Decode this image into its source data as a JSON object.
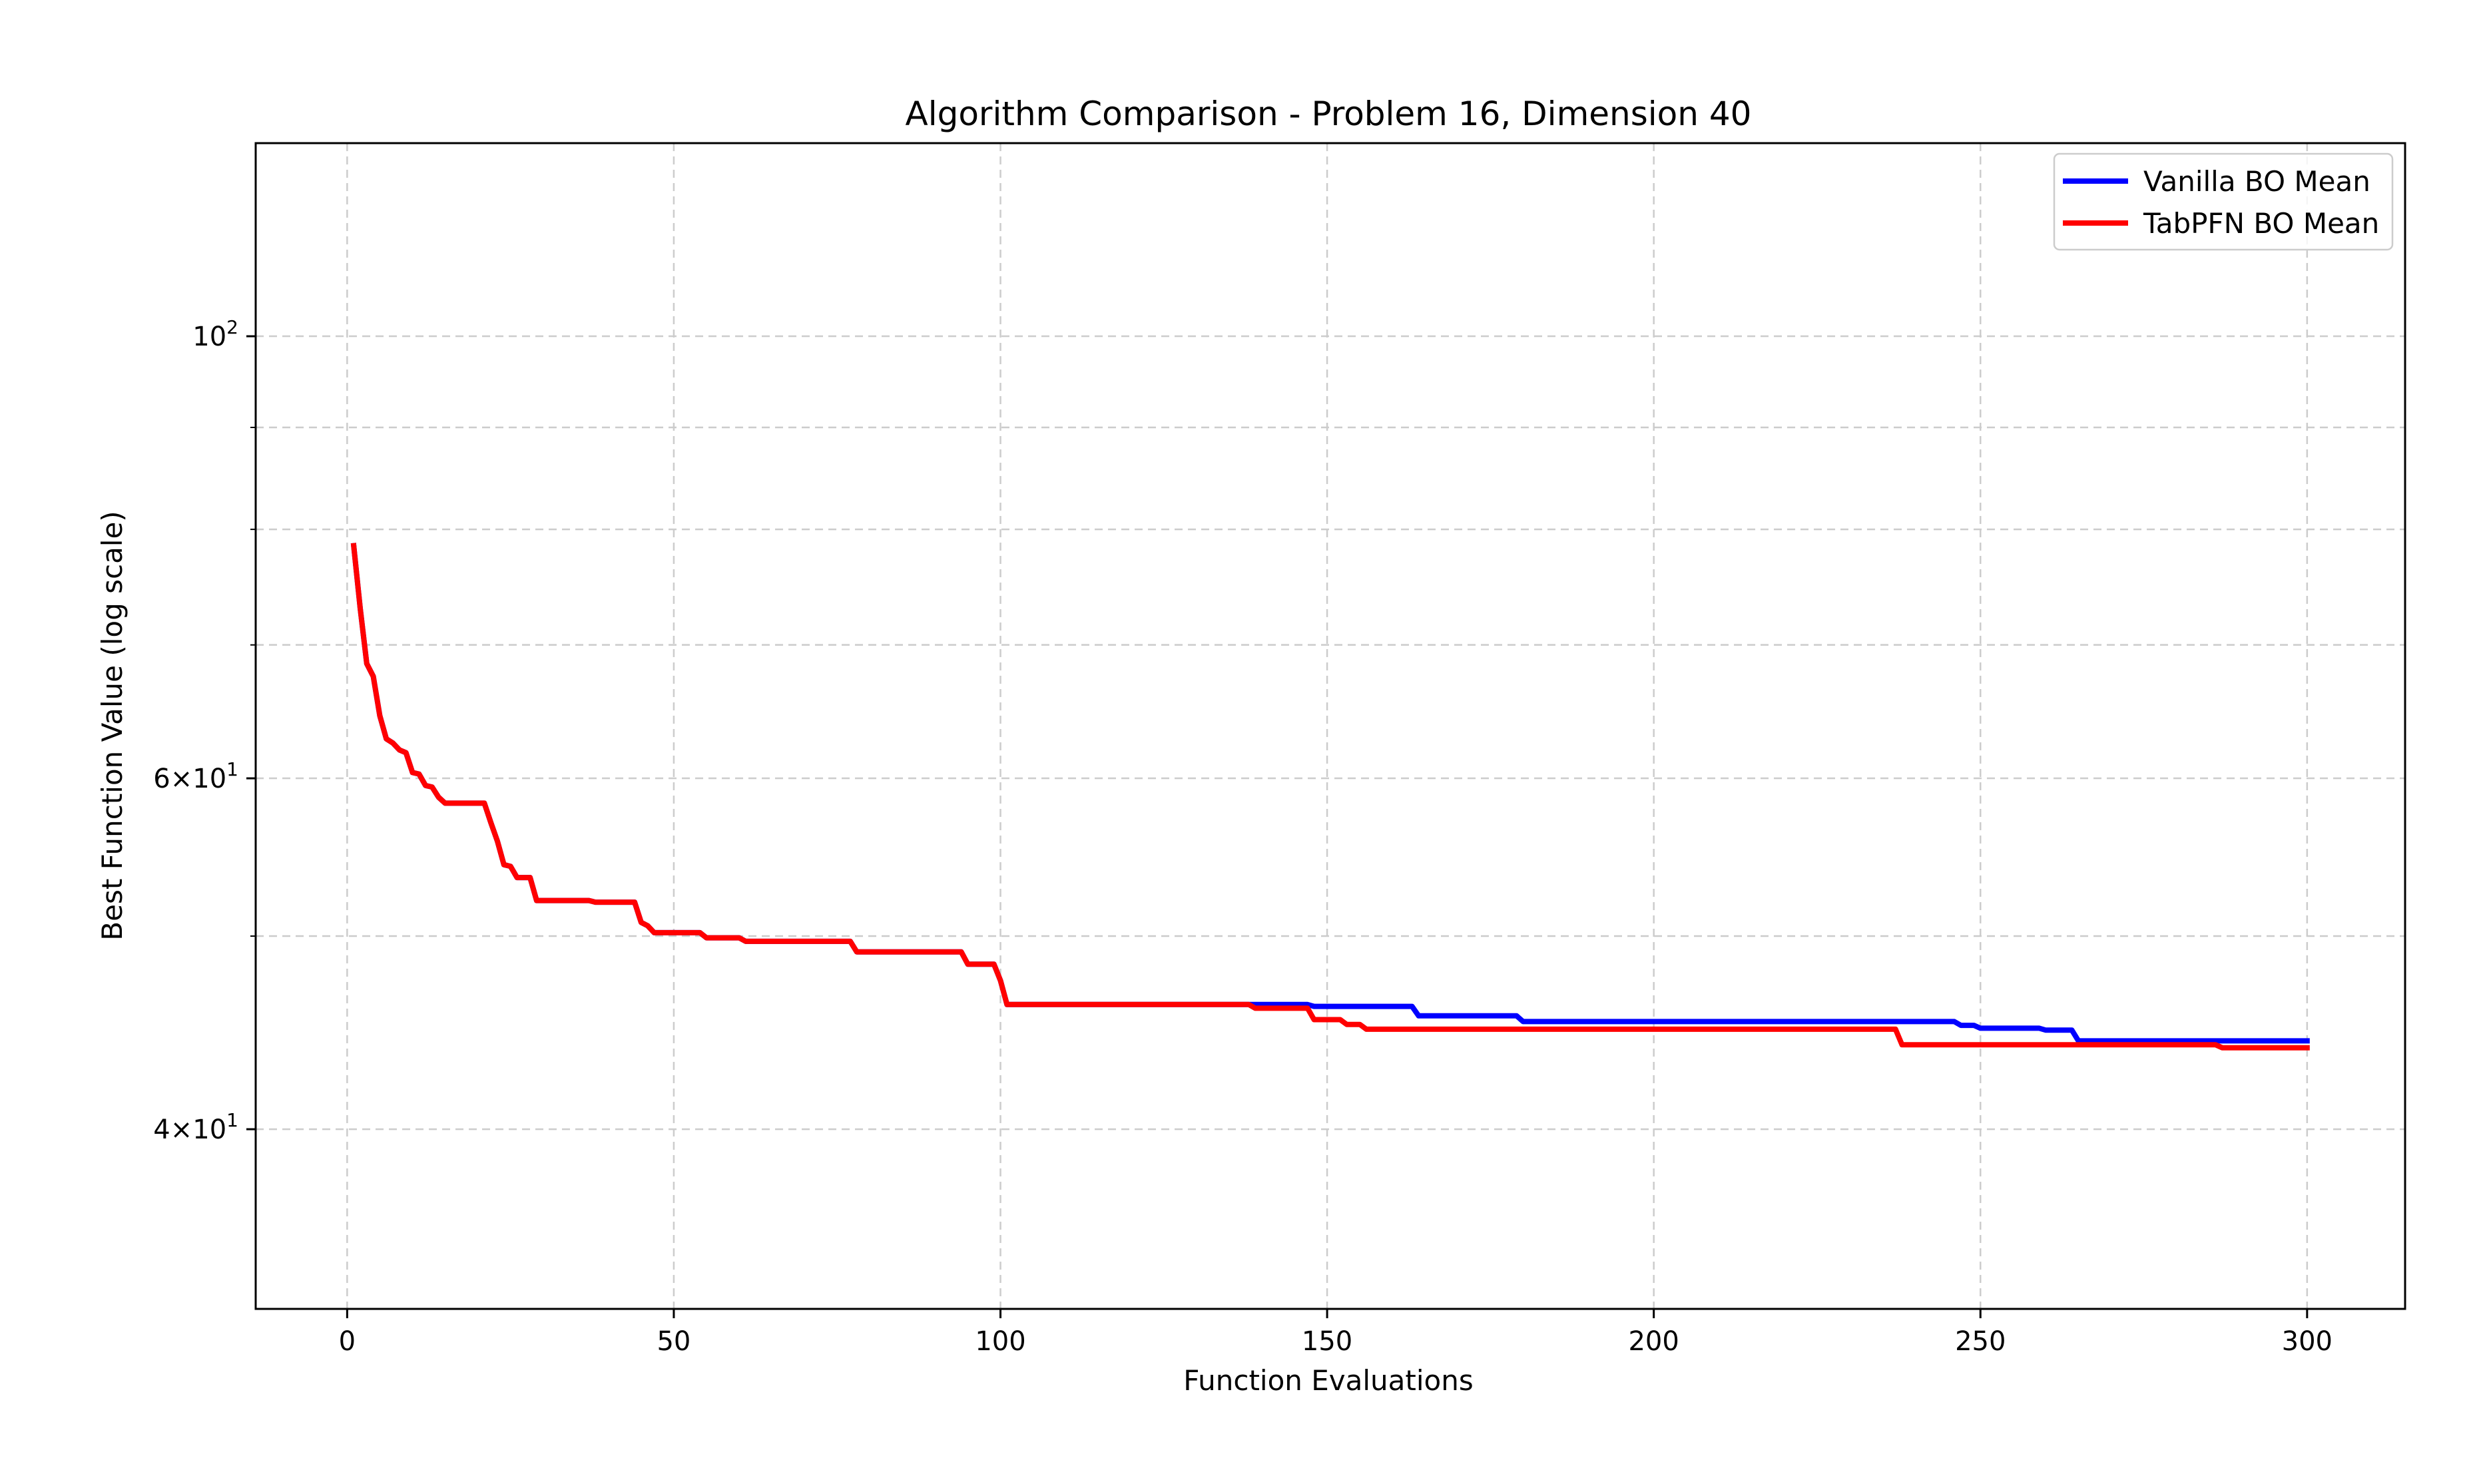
{
  "chart_data": {
    "type": "line",
    "title": "Algorithm Comparison - Problem 16, Dimension 40",
    "xlabel": "Function Evaluations",
    "ylabel": "Best Function Value (log scale)",
    "xlim": [
      -14,
      315
    ],
    "ylim": [
      32.5,
      125
    ],
    "yscale": "log",
    "grid": true,
    "legend_position": "top-right",
    "x_ticks": [
      0,
      50,
      100,
      150,
      200,
      250,
      300
    ],
    "y_ticks": [
      {
        "value": 100,
        "mantissa": "",
        "exp": "2"
      },
      {
        "value": 60,
        "mantissa": "6",
        "exp": "1"
      },
      {
        "value": 40,
        "mantissa": "4",
        "exp": "1"
      }
    ],
    "y_minor_grid": [
      50,
      70,
      80,
      90
    ],
    "series": [
      {
        "name": "Vanilla BO Mean",
        "color": "#0000ff",
        "points": [
          [
            1,
            78.5
          ],
          [
            2,
            73.0
          ],
          [
            3,
            68.5
          ],
          [
            4,
            67.5
          ],
          [
            5,
            64.5
          ],
          [
            6,
            62.8
          ],
          [
            7,
            62.5
          ],
          [
            8,
            62.0
          ],
          [
            9,
            61.8
          ],
          [
            10,
            60.4
          ],
          [
            11,
            60.3
          ],
          [
            12,
            59.5
          ],
          [
            13,
            59.4
          ],
          [
            14,
            58.7
          ],
          [
            15,
            58.3
          ],
          [
            21,
            58.3
          ],
          [
            22,
            57.0
          ],
          [
            23,
            55.8
          ],
          [
            24,
            54.3
          ],
          [
            25,
            54.2
          ],
          [
            26,
            53.5
          ],
          [
            28,
            53.5
          ],
          [
            29,
            52.1
          ],
          [
            37,
            52.1
          ],
          [
            38,
            52.0
          ],
          [
            44,
            52.0
          ],
          [
            45,
            50.8
          ],
          [
            46,
            50.6
          ],
          [
            47,
            50.2
          ],
          [
            54,
            50.2
          ],
          [
            55,
            49.9
          ],
          [
            60,
            49.9
          ],
          [
            61,
            49.7
          ],
          [
            77,
            49.7
          ],
          [
            78,
            49.1
          ],
          [
            94,
            49.1
          ],
          [
            95,
            48.4
          ],
          [
            99,
            48.4
          ],
          [
            100,
            47.5
          ],
          [
            101,
            46.2
          ],
          [
            147,
            46.2
          ],
          [
            148,
            46.1
          ],
          [
            163,
            46.1
          ],
          [
            164,
            45.6
          ],
          [
            179,
            45.6
          ],
          [
            180,
            45.3
          ],
          [
            246,
            45.3
          ],
          [
            247,
            45.1
          ],
          [
            249,
            45.1
          ],
          [
            250,
            44.95
          ],
          [
            259,
            44.95
          ],
          [
            260,
            44.85
          ],
          [
            264,
            44.85
          ],
          [
            265,
            44.3
          ],
          [
            300,
            44.3
          ]
        ]
      },
      {
        "name": "TabPFN BO Mean",
        "color": "#ff0000",
        "points": [
          [
            1,
            78.5
          ],
          [
            2,
            73.0
          ],
          [
            3,
            68.5
          ],
          [
            4,
            67.5
          ],
          [
            5,
            64.5
          ],
          [
            6,
            62.8
          ],
          [
            7,
            62.5
          ],
          [
            8,
            62.0
          ],
          [
            9,
            61.8
          ],
          [
            10,
            60.4
          ],
          [
            11,
            60.3
          ],
          [
            12,
            59.5
          ],
          [
            13,
            59.4
          ],
          [
            14,
            58.7
          ],
          [
            15,
            58.3
          ],
          [
            21,
            58.3
          ],
          [
            22,
            57.0
          ],
          [
            23,
            55.8
          ],
          [
            24,
            54.3
          ],
          [
            25,
            54.2
          ],
          [
            26,
            53.5
          ],
          [
            28,
            53.5
          ],
          [
            29,
            52.1
          ],
          [
            37,
            52.1
          ],
          [
            38,
            52.0
          ],
          [
            44,
            52.0
          ],
          [
            45,
            50.8
          ],
          [
            46,
            50.6
          ],
          [
            47,
            50.2
          ],
          [
            54,
            50.2
          ],
          [
            55,
            49.9
          ],
          [
            60,
            49.9
          ],
          [
            61,
            49.7
          ],
          [
            77,
            49.7
          ],
          [
            78,
            49.1
          ],
          [
            94,
            49.1
          ],
          [
            95,
            48.4
          ],
          [
            99,
            48.4
          ],
          [
            100,
            47.5
          ],
          [
            101,
            46.2
          ],
          [
            138,
            46.2
          ],
          [
            139,
            46.0
          ],
          [
            147,
            46.0
          ],
          [
            148,
            45.4
          ],
          [
            152,
            45.4
          ],
          [
            153,
            45.15
          ],
          [
            155,
            45.15
          ],
          [
            156,
            44.9
          ],
          [
            237,
            44.9
          ],
          [
            238,
            44.1
          ],
          [
            286,
            44.1
          ],
          [
            287,
            43.95
          ],
          [
            300,
            43.95
          ]
        ]
      }
    ]
  }
}
